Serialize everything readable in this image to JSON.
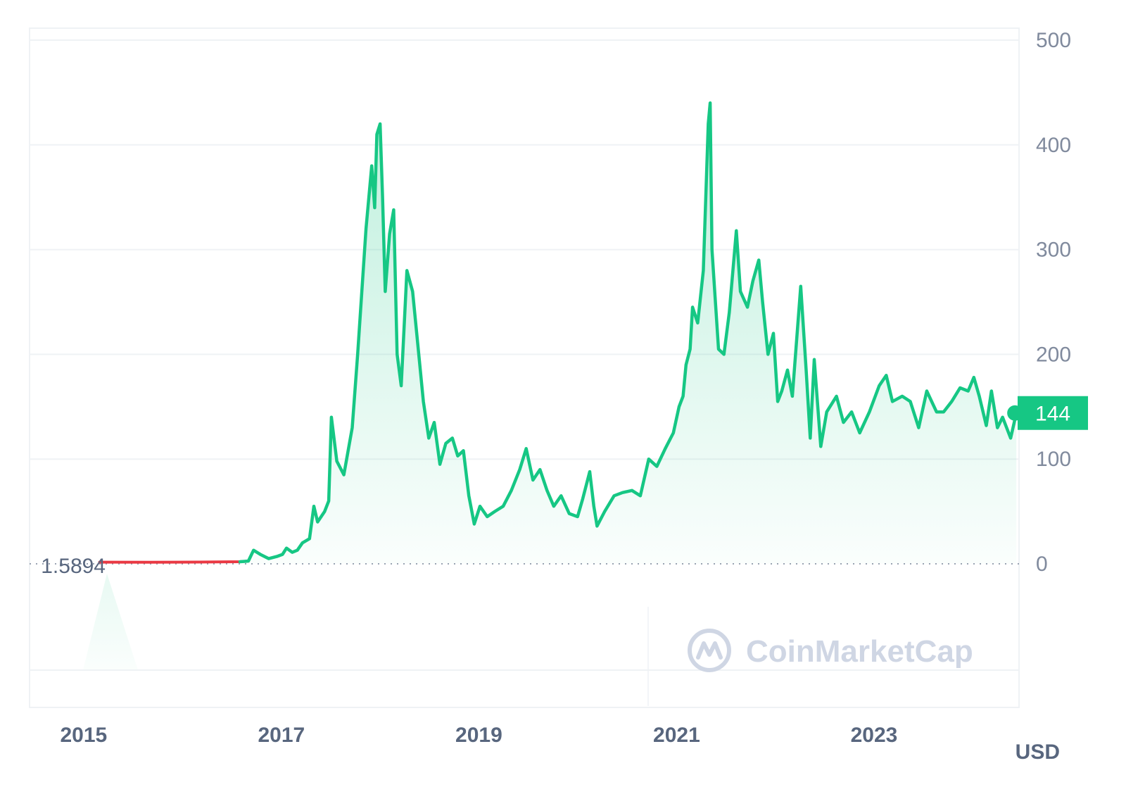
{
  "price_label": "1.5894",
  "current_badge": "144",
  "currency_label": "USD",
  "watermark_text": "CoinMarketCap",
  "colors": {
    "up": "#16c784",
    "down": "#ea3943",
    "grid": "#eff2f5",
    "axis_text": "#808a9d",
    "bottom_text": "#58667e",
    "watermark": "#cfd6e4",
    "badge_bg": "#16c784",
    "badge_text": "#ffffff"
  },
  "chart_data": {
    "type": "area",
    "title": "",
    "xlabel": "",
    "ylabel": "",
    "unit": "USD",
    "x_ticks": [
      "2015",
      "2017",
      "2019",
      "2021",
      "2023"
    ],
    "y_ticks": [
      0,
      100,
      200,
      300,
      400,
      500
    ],
    "ylim": [
      0,
      500
    ],
    "xlim": [
      "2014-06-15",
      "2024-06-20"
    ],
    "baseline": 1.5894,
    "grid": true,
    "series": [
      {
        "values": [
          [
            "2015-03-01",
            1.6
          ],
          [
            "2015-09-01",
            1.5
          ],
          [
            "2016-03-01",
            1.7
          ],
          [
            "2016-08-01",
            2.0
          ],
          [
            "2016-09-01",
            2.6
          ],
          [
            "2016-09-20",
            13
          ],
          [
            "2016-10-15",
            9
          ],
          [
            "2016-11-15",
            5
          ],
          [
            "2016-12-15",
            7
          ],
          [
            "2017-01-05",
            9
          ],
          [
            "2017-01-20",
            15
          ],
          [
            "2017-02-10",
            11
          ],
          [
            "2017-03-01",
            13
          ],
          [
            "2017-03-20",
            20
          ],
          [
            "2017-04-15",
            24
          ],
          [
            "2017-05-01",
            55
          ],
          [
            "2017-05-15",
            40
          ],
          [
            "2017-06-10",
            50
          ],
          [
            "2017-06-25",
            60
          ],
          [
            "2017-07-05",
            140
          ],
          [
            "2017-07-25",
            98
          ],
          [
            "2017-08-20",
            85
          ],
          [
            "2017-09-20",
            130
          ],
          [
            "2017-10-10",
            200
          ],
          [
            "2017-11-10",
            320
          ],
          [
            "2017-12-01",
            380
          ],
          [
            "2017-12-12",
            340
          ],
          [
            "2017-12-20",
            410
          ],
          [
            "2018-01-01",
            420
          ],
          [
            "2018-01-10",
            350
          ],
          [
            "2018-01-20",
            260
          ],
          [
            "2018-02-05",
            315
          ],
          [
            "2018-02-20",
            338
          ],
          [
            "2018-03-05",
            200
          ],
          [
            "2018-03-20",
            170
          ],
          [
            "2018-04-10",
            280
          ],
          [
            "2018-05-01",
            260
          ],
          [
            "2018-05-20",
            210
          ],
          [
            "2018-06-10",
            155
          ],
          [
            "2018-06-30",
            120
          ],
          [
            "2018-07-20",
            135
          ],
          [
            "2018-08-10",
            95
          ],
          [
            "2018-09-01",
            115
          ],
          [
            "2018-09-25",
            120
          ],
          [
            "2018-10-15",
            103
          ],
          [
            "2018-11-05",
            108
          ],
          [
            "2018-11-25",
            65
          ],
          [
            "2018-12-15",
            38
          ],
          [
            "2019-01-05",
            55
          ],
          [
            "2019-02-01",
            45
          ],
          [
            "2019-03-01",
            50
          ],
          [
            "2019-04-01",
            55
          ],
          [
            "2019-05-01",
            70
          ],
          [
            "2019-06-01",
            90
          ],
          [
            "2019-06-25",
            110
          ],
          [
            "2019-07-20",
            80
          ],
          [
            "2019-08-15",
            90
          ],
          [
            "2019-09-10",
            70
          ],
          [
            "2019-10-05",
            55
          ],
          [
            "2019-11-01",
            65
          ],
          [
            "2019-12-01",
            48
          ],
          [
            "2020-01-01",
            45
          ],
          [
            "2020-01-20",
            62
          ],
          [
            "2020-02-15",
            88
          ],
          [
            "2020-03-01",
            55
          ],
          [
            "2020-03-13",
            36
          ],
          [
            "2020-04-10",
            50
          ],
          [
            "2020-05-15",
            65
          ],
          [
            "2020-06-15",
            68
          ],
          [
            "2020-07-20",
            70
          ],
          [
            "2020-08-20",
            65
          ],
          [
            "2020-09-20",
            100
          ],
          [
            "2020-10-20",
            93
          ],
          [
            "2020-11-20",
            110
          ],
          [
            "2020-12-20",
            125
          ],
          [
            "2021-01-10",
            150
          ],
          [
            "2021-01-25",
            160
          ],
          [
            "2021-02-05",
            190
          ],
          [
            "2021-02-20",
            205
          ],
          [
            "2021-03-01",
            245
          ],
          [
            "2021-03-20",
            230
          ],
          [
            "2021-04-10",
            280
          ],
          [
            "2021-04-28",
            420
          ],
          [
            "2021-05-05",
            440
          ],
          [
            "2021-05-12",
            300
          ],
          [
            "2021-05-22",
            260
          ],
          [
            "2021-06-05",
            205
          ],
          [
            "2021-06-25",
            200
          ],
          [
            "2021-07-15",
            240
          ],
          [
            "2021-08-10",
            318
          ],
          [
            "2021-08-25",
            260
          ],
          [
            "2021-09-20",
            245
          ],
          [
            "2021-10-10",
            270
          ],
          [
            "2021-11-01",
            290
          ],
          [
            "2021-11-15",
            250
          ],
          [
            "2021-12-05",
            200
          ],
          [
            "2021-12-25",
            220
          ],
          [
            "2022-01-10",
            155
          ],
          [
            "2022-01-25",
            165
          ],
          [
            "2022-02-15",
            185
          ],
          [
            "2022-03-05",
            160
          ],
          [
            "2022-04-05",
            265
          ],
          [
            "2022-04-25",
            185
          ],
          [
            "2022-05-10",
            120
          ],
          [
            "2022-05-25",
            195
          ],
          [
            "2022-06-18",
            112
          ],
          [
            "2022-07-10",
            145
          ],
          [
            "2022-08-15",
            160
          ],
          [
            "2022-09-10",
            135
          ],
          [
            "2022-10-10",
            145
          ],
          [
            "2022-11-09",
            125
          ],
          [
            "2022-12-15",
            145
          ],
          [
            "2023-01-20",
            170
          ],
          [
            "2023-02-15",
            180
          ],
          [
            "2023-03-10",
            155
          ],
          [
            "2023-04-15",
            160
          ],
          [
            "2023-05-15",
            155
          ],
          [
            "2023-06-15",
            130
          ],
          [
            "2023-07-15",
            165
          ],
          [
            "2023-08-20",
            145
          ],
          [
            "2023-09-15",
            145
          ],
          [
            "2023-10-15",
            155
          ],
          [
            "2023-11-15",
            168
          ],
          [
            "2023-12-15",
            165
          ],
          [
            "2024-01-05",
            178
          ],
          [
            "2024-01-25",
            160
          ],
          [
            "2024-02-20",
            132
          ],
          [
            "2024-03-10",
            165
          ],
          [
            "2024-04-01",
            130
          ],
          [
            "2024-04-20",
            140
          ],
          [
            "2024-05-20",
            120
          ],
          [
            "2024-06-10",
            144
          ]
        ]
      }
    ],
    "current_value": 144
  }
}
